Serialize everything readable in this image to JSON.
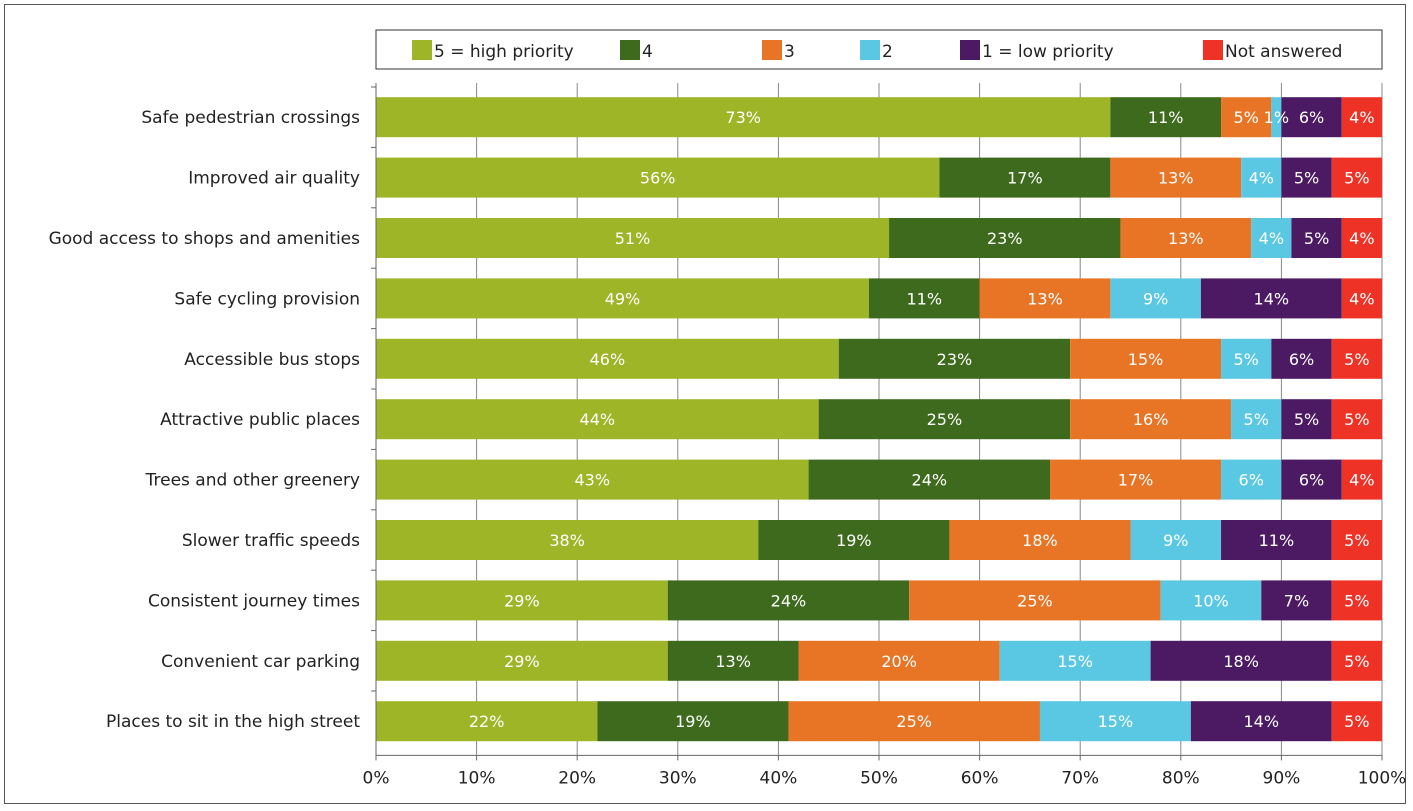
{
  "chart_data": {
    "type": "bar",
    "orientation": "horizontal",
    "stacked": true,
    "categories": [
      "Safe pedestrian crossings",
      "Improved air quality",
      "Good access to shops and amenities",
      "Safe cycling provision",
      "Accessible bus stops",
      "Attractive public places",
      "Trees and other greenery",
      "Slower traffic speeds",
      "Consistent journey times",
      "Convenient car parking",
      "Places to sit in the high street"
    ],
    "series": [
      {
        "name": "5 = high priority",
        "color": "#9db527",
        "values": [
          73,
          56,
          51,
          49,
          46,
          44,
          43,
          38,
          29,
          29,
          22
        ]
      },
      {
        "name": "4",
        "color": "#3d6a1d",
        "values": [
          11,
          17,
          23,
          11,
          23,
          25,
          24,
          19,
          24,
          13,
          19
        ]
      },
      {
        "name": "3",
        "color": "#e87525",
        "values": [
          5,
          13,
          13,
          13,
          15,
          16,
          17,
          18,
          25,
          20,
          25
        ]
      },
      {
        "name": "2",
        "color": "#5bc8e3",
        "values": [
          1,
          4,
          4,
          9,
          5,
          5,
          6,
          9,
          10,
          15,
          15
        ]
      },
      {
        "name": "1 = low priority",
        "color": "#4b1a63",
        "values": [
          6,
          5,
          5,
          14,
          6,
          5,
          6,
          11,
          7,
          18,
          14
        ]
      },
      {
        "name": "Not answered",
        "color": "#ee3326",
        "values": [
          4,
          5,
          4,
          4,
          5,
          5,
          4,
          5,
          5,
          5,
          5
        ]
      }
    ],
    "x_ticks": [
      "0%",
      "10%",
      "20%",
      "30%",
      "40%",
      "50%",
      "60%",
      "70%",
      "80%",
      "90%",
      "100%"
    ],
    "xlim": [
      0,
      100
    ],
    "grid": true,
    "legend_position": "top",
    "data_label_color": "#ffffff"
  }
}
